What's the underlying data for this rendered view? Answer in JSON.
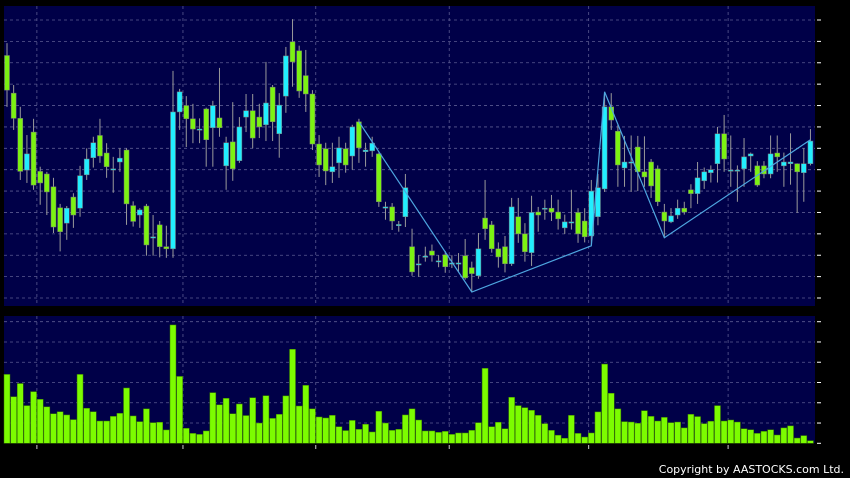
{
  "chart_data": [
    {
      "type": "candlestick",
      "title": "",
      "ylim": [
        26,
        32.5
      ],
      "y_ticks": [
        "26",
        "26.5",
        "27",
        "27.5",
        "28",
        "28.5",
        "29",
        "29.5",
        "30",
        "30.5",
        "31",
        "31.5",
        "32",
        "32.5"
      ],
      "x_ticks": [
        "1-9-25",
        "2-10-25",
        "3-11-25",
        "1-12-25",
        "2-1-26",
        "2-2-26"
      ],
      "grid": true,
      "colors": {
        "background": "#000048",
        "up": "#22eeff",
        "down": "#7cf212",
        "wick": "#9a9a9a",
        "grid": "#5a5a90",
        "zigzag": "#4ea6e0"
      },
      "ohlc_fields": [
        "open",
        "high",
        "low",
        "close"
      ],
      "candles": [
        [
          31.67,
          31.96,
          30.47,
          30.86
        ],
        [
          30.79,
          30.98,
          29.93,
          30.2
        ],
        [
          30.2,
          30.47,
          28.76,
          28.96
        ],
        [
          28.99,
          29.81,
          28.69,
          29.37
        ],
        [
          29.88,
          30.19,
          28.53,
          28.64
        ],
        [
          28.96,
          29.07,
          28.18,
          28.69
        ],
        [
          28.9,
          28.95,
          27.94,
          28.48
        ],
        [
          28.6,
          28.81,
          27.52,
          27.66
        ],
        [
          28.11,
          28.2,
          27.09,
          27.55
        ],
        [
          27.75,
          28.15,
          27.36,
          28.1
        ],
        [
          28.36,
          28.45,
          27.64,
          27.94
        ],
        [
          28.1,
          29.09,
          27.9,
          28.86
        ],
        [
          28.88,
          29.5,
          28.76,
          29.25
        ],
        [
          29.28,
          29.77,
          29.05,
          29.63
        ],
        [
          29.8,
          30.19,
          29.16,
          29.32
        ],
        [
          29.39,
          29.62,
          28.81,
          29.07
        ],
        [
          29.02,
          29.3,
          28.46,
          29.02
        ],
        [
          29.18,
          29.5,
          28.95,
          29.27
        ],
        [
          29.46,
          29.5,
          27.71,
          28.2
        ],
        [
          28.16,
          28.26,
          27.67,
          27.79
        ],
        [
          27.94,
          28.1,
          27.64,
          28.06
        ],
        [
          28.15,
          28.2,
          26.99,
          27.24
        ],
        [
          27.43,
          27.94,
          26.99,
          27.43
        ],
        [
          27.71,
          27.8,
          26.95,
          27.2
        ],
        [
          27.2,
          27.69,
          26.94,
          27.15
        ],
        [
          27.15,
          31.31,
          26.94,
          30.35
        ],
        [
          30.35,
          30.89,
          29.93,
          30.82
        ],
        [
          30.5,
          30.72,
          29.53,
          30.19
        ],
        [
          30.19,
          30.54,
          29.62,
          29.95
        ],
        [
          29.95,
          30.2,
          29.62,
          29.95
        ],
        [
          30.42,
          30.45,
          29.07,
          29.7
        ],
        [
          29.98,
          30.61,
          29.07,
          30.5
        ],
        [
          30.21,
          31.38,
          29.77,
          29.98
        ],
        [
          29.09,
          29.77,
          28.53,
          29.63
        ],
        [
          29.65,
          30.58,
          28.74,
          29.02
        ],
        [
          29.21,
          30.23,
          29.16,
          30.0
        ],
        [
          30.23,
          30.77,
          29.88,
          30.38
        ],
        [
          30.38,
          30.77,
          29.5,
          29.74
        ],
        [
          30.23,
          30.54,
          29.74,
          30.0
        ],
        [
          30.05,
          31.52,
          29.67,
          30.56
        ],
        [
          30.93,
          30.98,
          29.67,
          30.12
        ],
        [
          29.84,
          30.79,
          29.28,
          30.51
        ],
        [
          30.72,
          31.87,
          30.33,
          31.66
        ],
        [
          31.99,
          32.52,
          30.94,
          31.52
        ],
        [
          31.78,
          31.9,
          30.68,
          30.84
        ],
        [
          31.2,
          31.8,
          30.35,
          30.77
        ],
        [
          30.77,
          30.86,
          29.46,
          29.6
        ],
        [
          29.6,
          29.81,
          28.83,
          29.11
        ],
        [
          29.49,
          29.63,
          28.64,
          28.97
        ],
        [
          28.95,
          29.63,
          28.69,
          29.07
        ],
        [
          29.16,
          29.77,
          28.81,
          29.51
        ],
        [
          29.49,
          29.63,
          28.93,
          29.11
        ],
        [
          29.32,
          30.05,
          29.0,
          30.0
        ],
        [
          30.12,
          30.19,
          29.16,
          29.51
        ],
        [
          29.42,
          29.63,
          29.07,
          29.46
        ],
        [
          29.44,
          29.77,
          29.3,
          29.62
        ],
        [
          29.37,
          29.4,
          28.13,
          28.25
        ],
        [
          28.1,
          28.25,
          27.83,
          28.13
        ],
        [
          28.13,
          28.22,
          27.59,
          27.8
        ],
        [
          27.69,
          27.8,
          27.55,
          27.72
        ],
        [
          27.9,
          28.9,
          27.66,
          28.58
        ],
        [
          27.2,
          27.62,
          26.52,
          26.61
        ],
        [
          26.8,
          27.0,
          26.5,
          26.8
        ],
        [
          26.95,
          27.2,
          26.85,
          26.98
        ],
        [
          27.1,
          27.25,
          26.85,
          27.0
        ],
        [
          26.87,
          27.0,
          26.72,
          26.87
        ],
        [
          27.01,
          27.1,
          26.59,
          26.73
        ],
        [
          26.82,
          27.0,
          26.7,
          26.82
        ],
        [
          26.82,
          27.05,
          26.6,
          26.82
        ],
        [
          26.99,
          27.38,
          26.43,
          26.47
        ],
        [
          26.71,
          26.85,
          26.14,
          26.57
        ],
        [
          26.52,
          27.52,
          26.45,
          27.15
        ],
        [
          27.87,
          28.76,
          27.36,
          27.62
        ],
        [
          27.71,
          27.8,
          27.06,
          27.15
        ],
        [
          27.15,
          27.3,
          26.71,
          26.96
        ],
        [
          27.2,
          27.45,
          26.6,
          26.8
        ],
        [
          26.8,
          28.34,
          26.75,
          28.13
        ],
        [
          27.9,
          28.34,
          27.29,
          27.5
        ],
        [
          27.5,
          27.75,
          26.85,
          27.08
        ],
        [
          27.06,
          28.39,
          26.75,
          28.0
        ],
        [
          28.01,
          28.13,
          27.55,
          27.94
        ],
        [
          28.1,
          28.3,
          27.83,
          28.1
        ],
        [
          28.1,
          28.41,
          27.8,
          28.01
        ],
        [
          28.01,
          28.3,
          27.6,
          27.85
        ],
        [
          27.64,
          27.95,
          27.5,
          27.78
        ],
        [
          27.78,
          28.53,
          27.6,
          27.78
        ],
        [
          28.0,
          28.1,
          27.29,
          27.5
        ],
        [
          27.8,
          28.1,
          27.3,
          27.43
        ],
        [
          27.45,
          28.76,
          27.24,
          28.5
        ],
        [
          27.9,
          28.9,
          27.7,
          28.58
        ],
        [
          28.55,
          30.82,
          28.48,
          30.47
        ],
        [
          30.47,
          30.79,
          29.93,
          30.16
        ],
        [
          29.9,
          30.05,
          28.6,
          29.11
        ],
        [
          29.04,
          29.79,
          28.6,
          29.18
        ],
        [
          29.18,
          29.8,
          28.48,
          29.18
        ],
        [
          29.53,
          29.79,
          28.5,
          28.95
        ],
        [
          28.95,
          29.78,
          28.6,
          28.83
        ],
        [
          29.18,
          29.25,
          28.34,
          28.62
        ],
        [
          29.02,
          29.1,
          28.15,
          28.25
        ],
        [
          28.01,
          28.2,
          27.41,
          27.8
        ],
        [
          27.78,
          28.1,
          27.75,
          27.92
        ],
        [
          27.94,
          28.3,
          27.85,
          28.1
        ],
        [
          28.1,
          28.25,
          27.95,
          28.01
        ],
        [
          28.53,
          28.66,
          28.1,
          28.44
        ],
        [
          28.44,
          29.18,
          28.2,
          28.81
        ],
        [
          28.74,
          29.05,
          28.55,
          28.95
        ],
        [
          28.93,
          29.1,
          28.7,
          29.0
        ],
        [
          29.14,
          30.0,
          28.7,
          29.84
        ],
        [
          29.84,
          30.28,
          28.95,
          29.25
        ],
        [
          28.99,
          29.8,
          28.6,
          28.99
        ],
        [
          28.99,
          29.1,
          28.25,
          28.99
        ],
        [
          29.02,
          29.74,
          28.6,
          29.3
        ],
        [
          29.32,
          29.4,
          28.95,
          29.37
        ],
        [
          29.09,
          29.2,
          28.6,
          28.64
        ],
        [
          29.09,
          29.2,
          28.8,
          28.9
        ],
        [
          28.9,
          29.8,
          28.8,
          29.37
        ],
        [
          29.39,
          29.8,
          28.95,
          29.3
        ],
        [
          29.09,
          29.4,
          28.6,
          29.18
        ],
        [
          29.14,
          29.85,
          28.65,
          29.18
        ],
        [
          29.14,
          29.15,
          27.99,
          28.95
        ],
        [
          28.93,
          29.5,
          28.25,
          29.14
        ],
        [
          29.14,
          29.95,
          29.1,
          29.67
        ]
      ],
      "zigzag": [
        {
          "candle": 54,
          "value": 30.12
        },
        {
          "candle": 71,
          "value": 26.14
        },
        {
          "candle": 89,
          "value": 27.22
        },
        {
          "candle": 91,
          "value": 30.82
        },
        {
          "candle": 100,
          "value": 27.41
        },
        {
          "candle": 122,
          "value": 29.7
        }
      ]
    },
    {
      "type": "bar",
      "title": "",
      "ylim": [
        0,
        60000
      ],
      "y_ticks": [
        "0",
        "10K",
        "20K",
        "30K",
        "40K",
        "50K",
        "60K"
      ],
      "color": "#7cfc00",
      "values": [
        34000,
        23000,
        29500,
        18600,
        25500,
        21700,
        18000,
        14600,
        15600,
        14000,
        11700,
        34000,
        17300,
        15600,
        11000,
        11000,
        13300,
        14800,
        27300,
        13500,
        10700,
        17000,
        10200,
        10400,
        6600,
        58400,
        33000,
        7400,
        4900,
        4400,
        6100,
        25000,
        19000,
        22200,
        14600,
        19400,
        13700,
        22500,
        10000,
        23500,
        12300,
        14300,
        23400,
        46400,
        18400,
        28600,
        17000,
        13000,
        12500,
        13800,
        8200,
        6300,
        11300,
        6900,
        9400,
        5600,
        15800,
        10000,
        6400,
        6900,
        14000,
        17000,
        11500,
        6100,
        6100,
        5400,
        5900,
        4400,
        5100,
        5100,
        6400,
        10200,
        37000,
        8200,
        10400,
        7200,
        22700,
        18600,
        17600,
        16300,
        13800,
        9700,
        6400,
        4000,
        2500,
        13800,
        4900,
        3100,
        5100,
        15500,
        39100,
        24700,
        17000,
        10700,
        10500,
        9900,
        16100,
        13300,
        11000,
        12800,
        10200,
        10500,
        7600,
        14300,
        13200,
        9700,
        10900,
        18600,
        11000,
        11500,
        10500,
        7200,
        6700,
        4900,
        5900,
        6700,
        4100,
        7600,
        8600,
        2600,
        3800,
        1300
      ]
    }
  ],
  "footer": {
    "copyright": "Copyright by AASTOCKS.com Ltd."
  }
}
